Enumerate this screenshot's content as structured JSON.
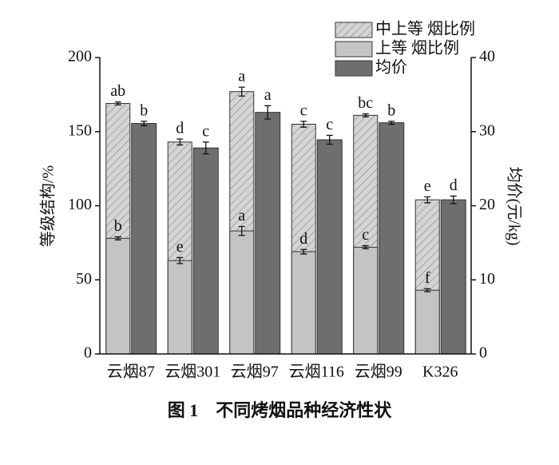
{
  "chart_data": {
    "type": "bar",
    "caption": "图 1　不同烤烟品种经济性状",
    "y_label": "等级结构/%",
    "y2_label": "均价(元/kg)",
    "categories": [
      "云烟87",
      "云烟301",
      "云烟97",
      "云烟116",
      "云烟99",
      "K326"
    ],
    "ylim": [
      0,
      200
    ],
    "yticks": [
      0,
      50,
      100,
      150,
      200
    ],
    "y2lim": [
      0,
      40
    ],
    "y2ticks": [
      0,
      10,
      20,
      30,
      40
    ],
    "legend": "upper right",
    "series": [
      {
        "name": "中上等 烟比例",
        "color": "#d4d4d4",
        "pattern": "hatch",
        "values": [
          169,
          143,
          177,
          155,
          161,
          104
        ],
        "errors": [
          1,
          2,
          3,
          2,
          1,
          2
        ],
        "labels": [
          "ab",
          "d",
          "a",
          "c",
          "bc",
          "e"
        ]
      },
      {
        "name": "上等 烟比例",
        "color": "#c4c4c4",
        "values": [
          78,
          63,
          83,
          69,
          72,
          43
        ],
        "errors": [
          1,
          2,
          3,
          1.5,
          1,
          1
        ],
        "labels": [
          "b",
          "e",
          "a",
          "d",
          "c",
          "f"
        ]
      },
      {
        "name": "均价",
        "color": "#6e6e6e",
        "axis": "y2",
        "values": [
          31.1,
          27.8,
          32.6,
          28.9,
          31.2,
          20.8
        ],
        "errors": [
          0.3,
          0.8,
          0.9,
          0.6,
          0.2,
          0.5
        ],
        "labels": [
          "b",
          "c",
          "a",
          "c",
          "b",
          "d"
        ]
      }
    ]
  }
}
